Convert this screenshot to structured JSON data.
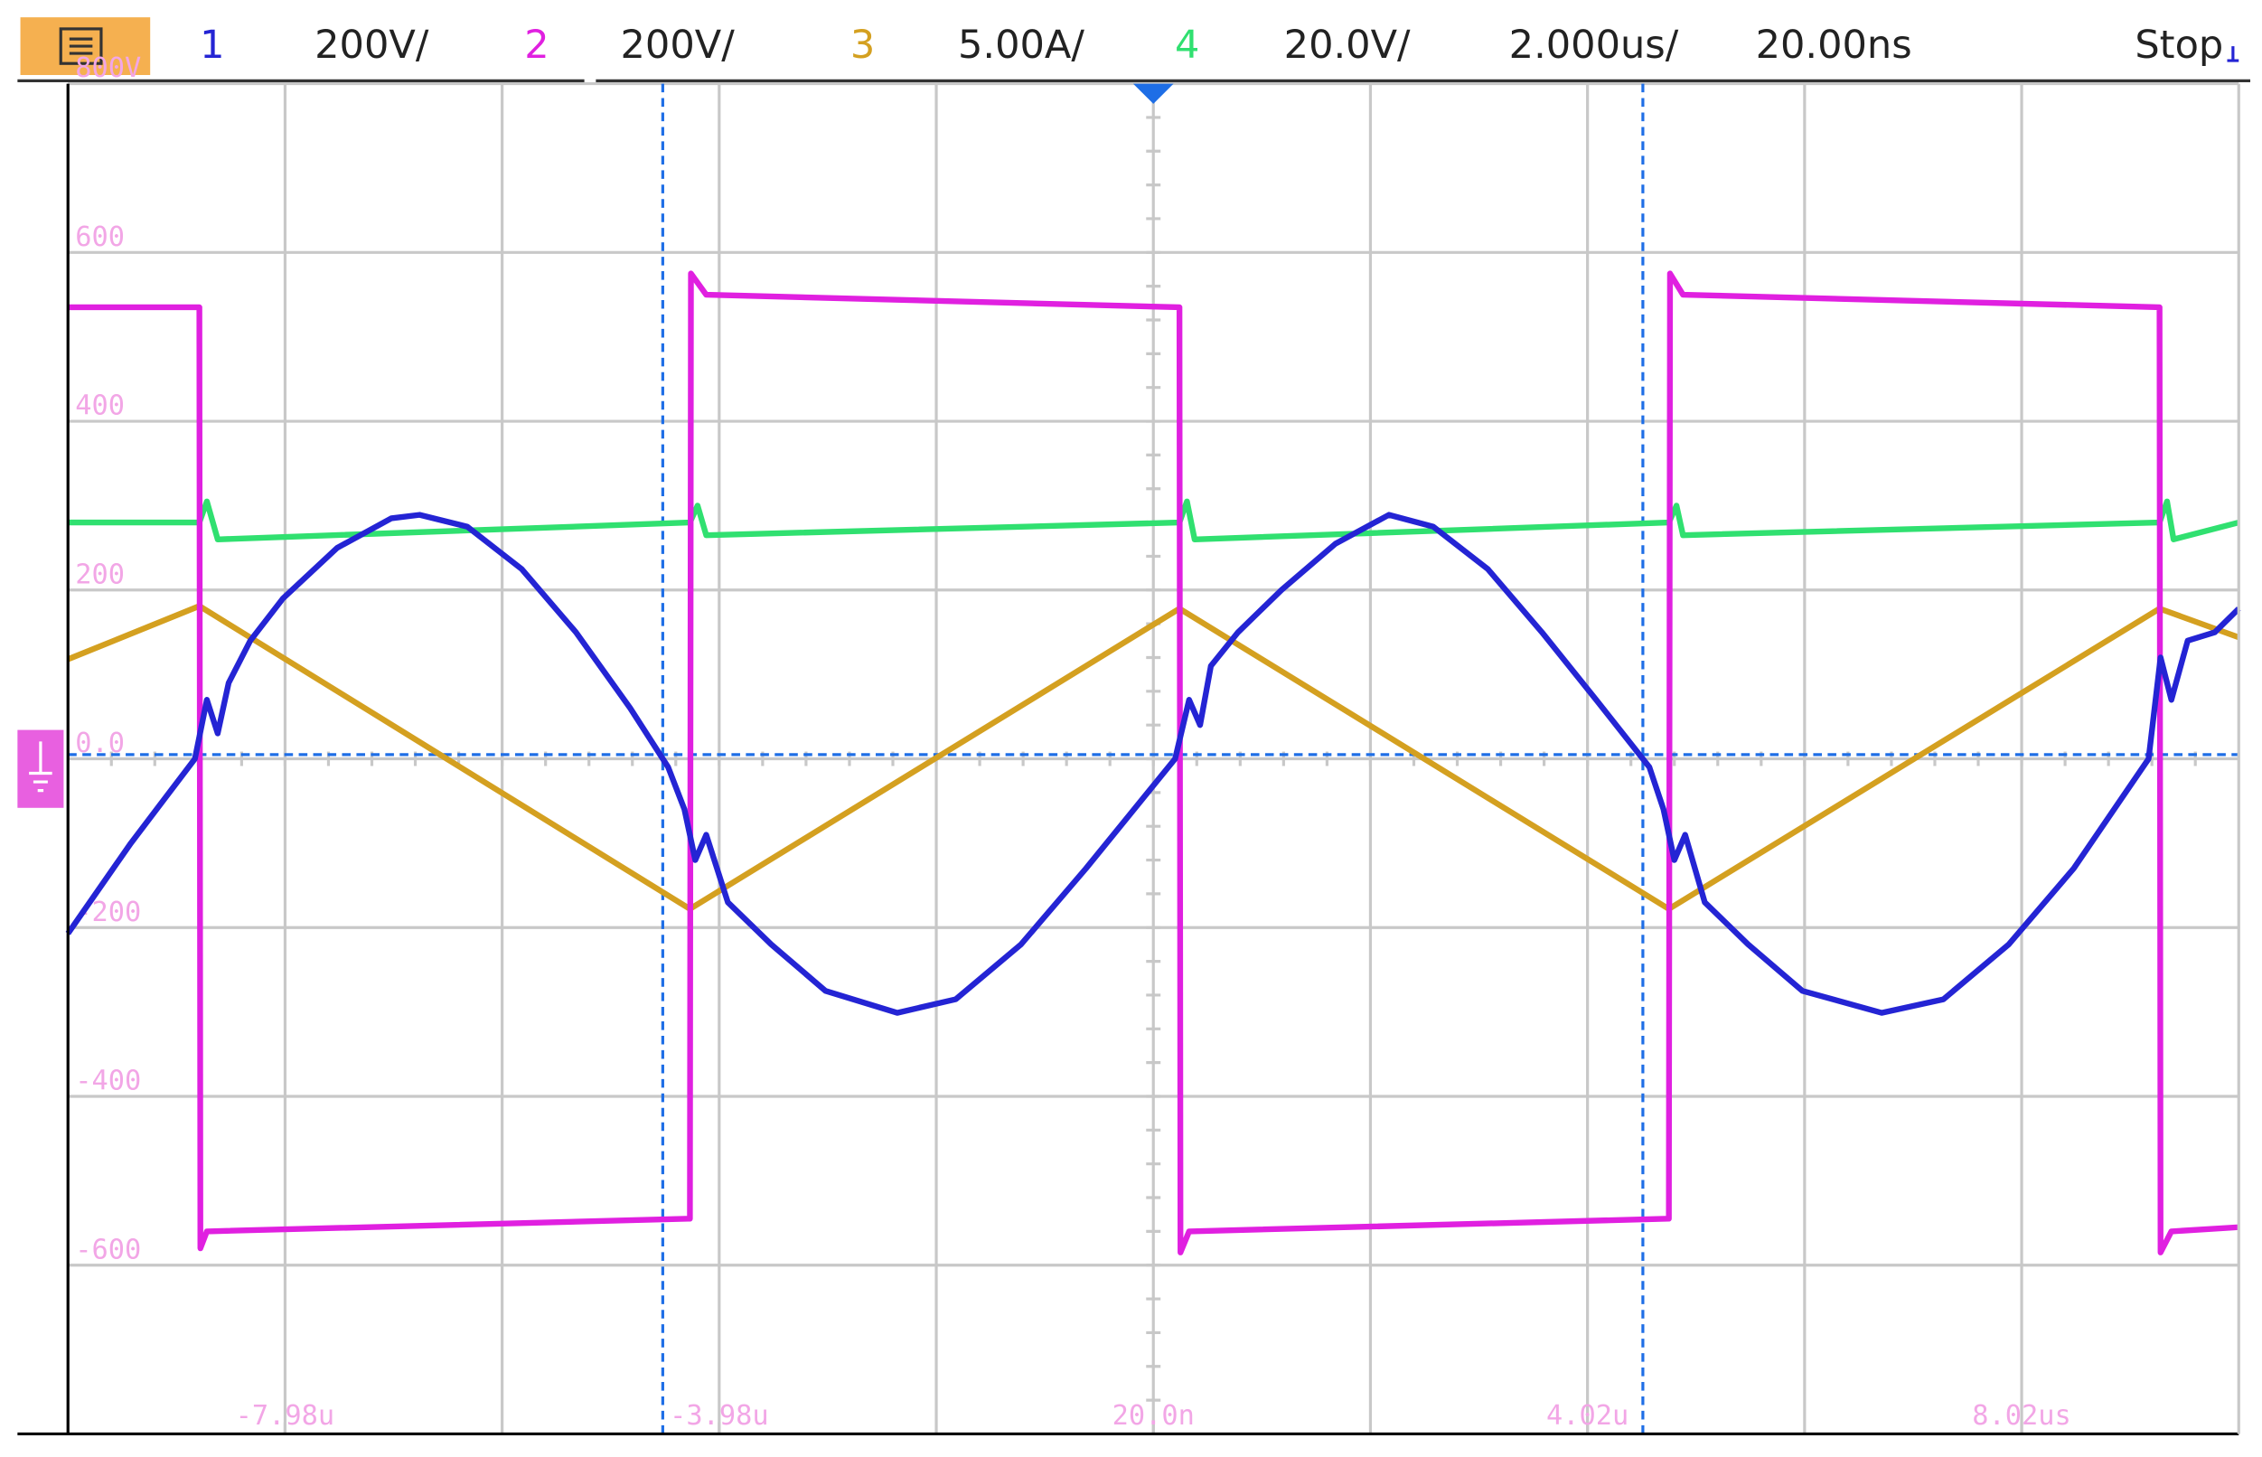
{
  "chart_data": {
    "type": "line",
    "header": {
      "timebase": "2.000us/",
      "delay": "20.00ns",
      "status": "Stop"
    },
    "series": [
      {
        "name": "1",
        "scale": "200V/",
        "color": "#2424d4",
        "x": [
          -9.98,
          -9.4,
          -8.81,
          -8.7,
          -8.6,
          -8.5,
          -8.3,
          -8.0,
          -7.5,
          -7.0,
          -6.74,
          -6.3,
          -5.8,
          -5.3,
          -4.8,
          -4.45,
          -4.3,
          -4.2,
          -4.1,
          -3.9,
          -3.5,
          -3.0,
          -2.34,
          -1.8,
          -1.2,
          -0.6,
          0.22,
          0.35,
          0.45,
          0.55,
          0.8,
          1.2,
          1.7,
          2.19,
          2.6,
          3.1,
          3.6,
          4.1,
          4.59,
          4.72,
          4.82,
          4.92,
          5.1,
          5.5,
          6.0,
          6.73,
          7.3,
          7.9,
          8.5,
          9.19,
          9.3,
          9.4,
          9.55,
          9.8,
          10.02
        ],
        "values": [
          -207,
          -100,
          0,
          70,
          30,
          90,
          140,
          190,
          250,
          285,
          289,
          275,
          225,
          150,
          60,
          -10,
          -60,
          -120,
          -90,
          -170,
          -220,
          -275,
          -301,
          -285,
          -220,
          -130,
          0,
          70,
          40,
          110,
          150,
          200,
          255,
          289,
          275,
          225,
          150,
          70,
          -10,
          -60,
          -120,
          -90,
          -170,
          -220,
          -275,
          -301,
          -285,
          -220,
          -130,
          0,
          120,
          70,
          140,
          150,
          178
        ]
      },
      {
        "name": "2",
        "scale": "200V/",
        "color": "#e020e0",
        "x": [
          -9.98,
          -8.77,
          -8.76,
          -8.7,
          -4.25,
          -4.24,
          -4.1,
          0.26,
          0.27,
          0.35,
          4.77,
          4.78,
          4.9,
          9.29,
          9.3,
          9.4,
          10.02
        ],
        "values": [
          535,
          535,
          -580,
          -560,
          -545,
          575,
          550,
          535,
          -585,
          -560,
          -545,
          575,
          550,
          535,
          -585,
          -560,
          -555
        ]
      },
      {
        "name": "3",
        "scale": "5.00A/",
        "color": "#d4a020",
        "x": [
          -9.98,
          -8.77,
          -4.25,
          0.26,
          4.77,
          9.29,
          10.02
        ],
        "values": [
          118,
          181,
          -178,
          178,
          -178,
          178,
          144
        ]
      },
      {
        "name": "4",
        "scale": "20.0V/",
        "color": "#30e070",
        "x": [
          -9.98,
          -8.77,
          -8.7,
          -8.6,
          -4.25,
          -4.18,
          -4.1,
          0.26,
          0.33,
          0.4,
          4.77,
          4.84,
          4.9,
          9.29,
          9.36,
          9.42,
          10.02
        ],
        "values": [
          280,
          280,
          305,
          260,
          280,
          300,
          265,
          280,
          305,
          260,
          280,
          300,
          265,
          280,
          305,
          260,
          280
        ]
      }
    ],
    "xlim": [
      -9.98,
      10.02
    ],
    "ylim": [
      -800,
      800
    ],
    "xticks": [
      {
        "value": -7.98,
        "label": "-7.98u"
      },
      {
        "value": -3.98,
        "label": "-3.98u"
      },
      {
        "value": 0.02,
        "label": "20.0n"
      },
      {
        "value": 4.02,
        "label": "4.02u"
      },
      {
        "value": 8.02,
        "label": "8.02us"
      }
    ],
    "yticks": [
      {
        "value": 800,
        "label": "800V"
      },
      600,
      400,
      200,
      {
        "value": 0,
        "label": "0.0"
      },
      -200,
      -400,
      -600
    ],
    "grid": true,
    "cursor_x": [
      -4.5,
      4.53
    ],
    "cursor_y": 5
  }
}
